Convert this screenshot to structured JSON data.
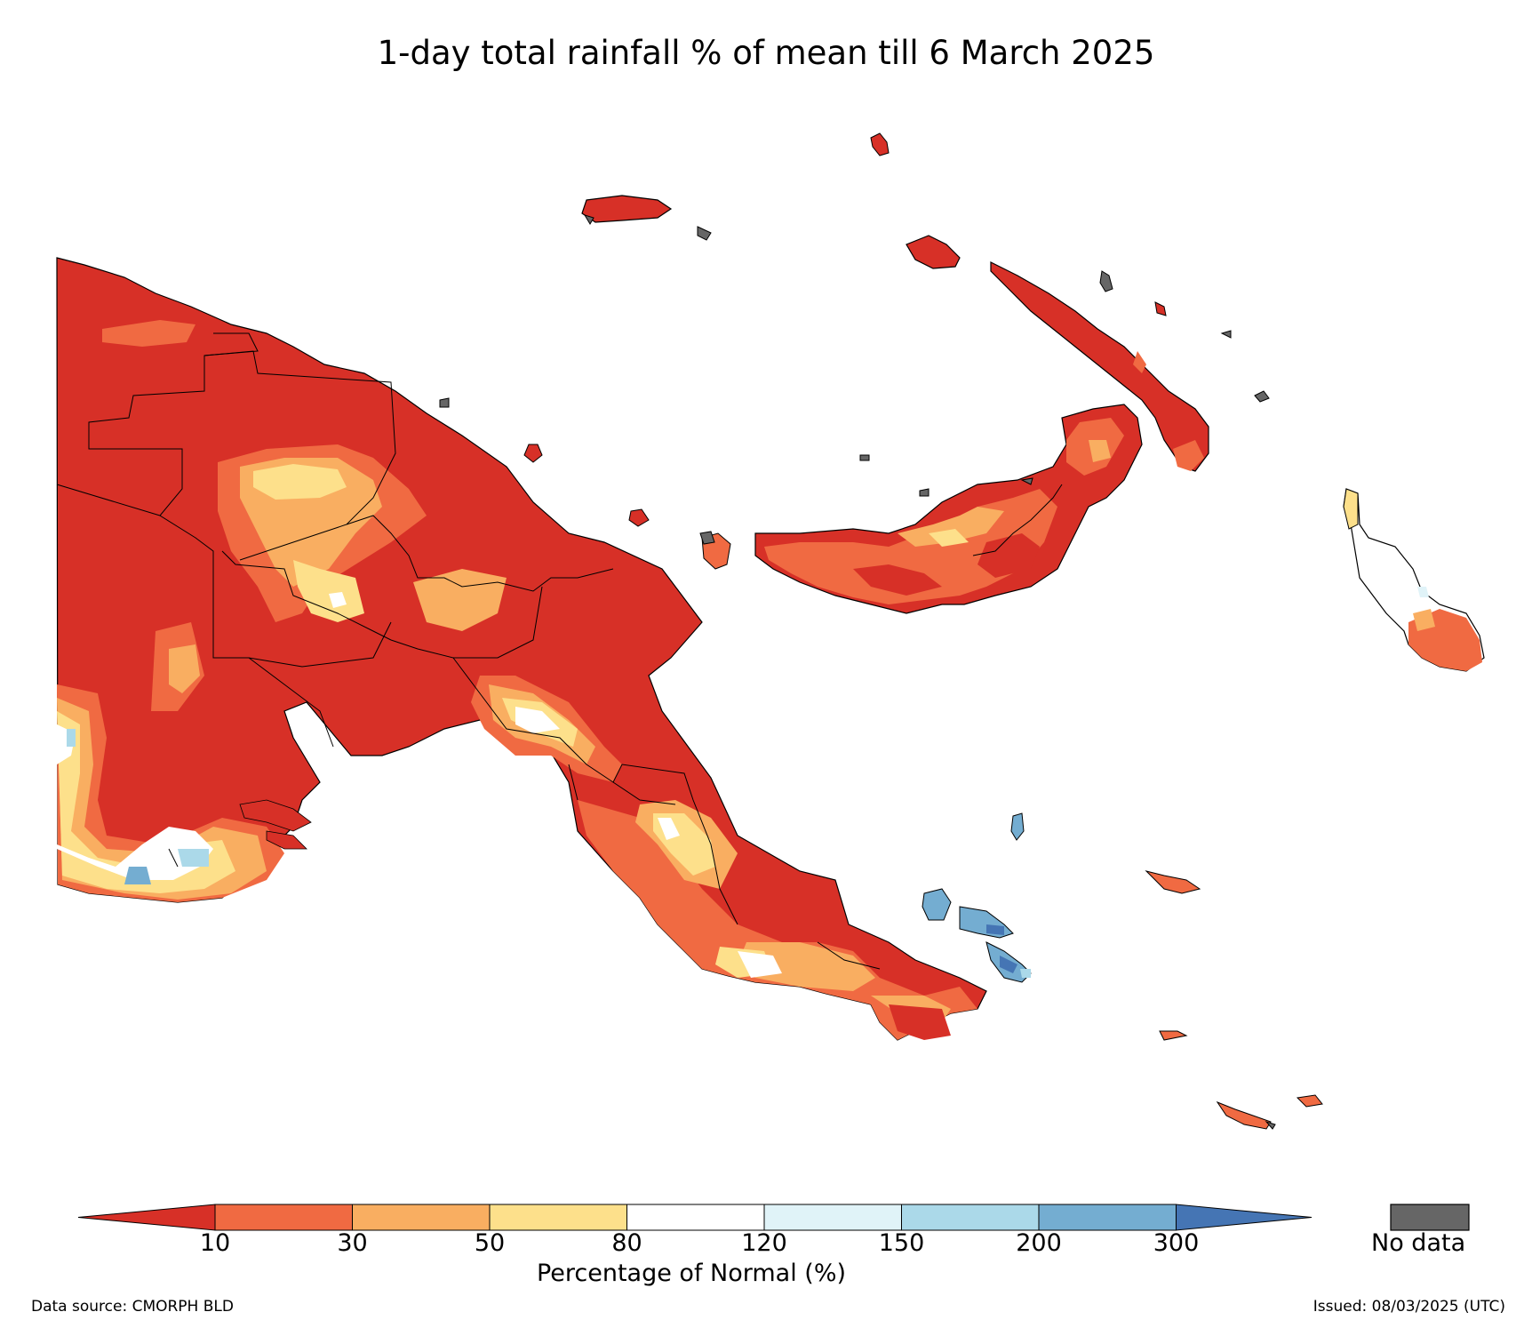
{
  "title": "1-day total rainfall % of mean till 6 March 2025",
  "legend": {
    "ticks": [
      "10",
      "30",
      "50",
      "80",
      "120",
      "150",
      "200",
      "300"
    ],
    "colors": {
      "lt10": "#d73027",
      "c10_30": "#f06a42",
      "c30_50": "#f9ae61",
      "c50_80": "#fde08b",
      "c80_120": "#ffffff",
      "c120_150": "#e0f3f8",
      "c150_200": "#abd9e9",
      "c200_300": "#74add1",
      "gt300": "#4575b4",
      "no_data": "#666666"
    },
    "axis_label": "Percentage of Normal (%)",
    "no_data_label": "No data"
  },
  "footer": {
    "source": "Data source: CMORPH BLD",
    "issued": "Issued: 08/03/2025 (UTC)"
  }
}
